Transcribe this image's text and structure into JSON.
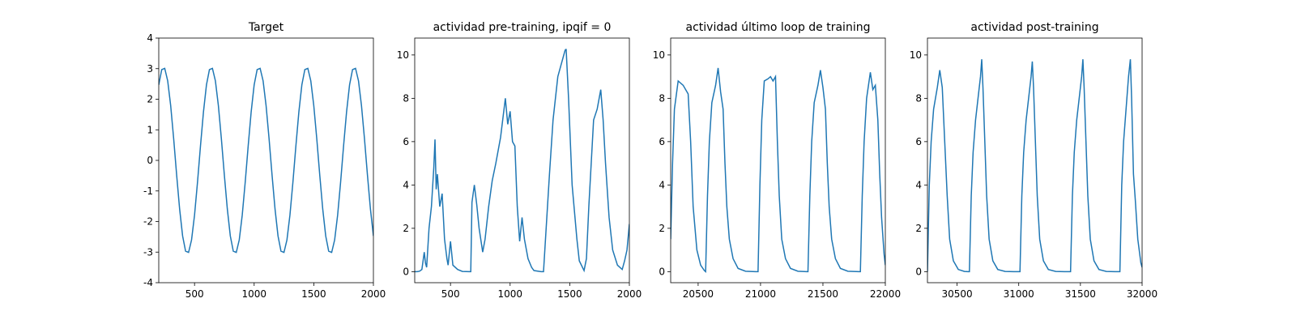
{
  "chart_data": [
    {
      "type": "line",
      "title": "Target",
      "color": "#1f77b4",
      "xlim": [
        200,
        2000
      ],
      "ylim": [
        -4,
        4
      ],
      "xticks": [
        500,
        1000,
        1500,
        2000
      ],
      "yticks": [
        -4,
        -3,
        -2,
        -1,
        0,
        1,
        2,
        3,
        4
      ],
      "x": [
        200,
        225,
        250,
        275,
        300,
        325,
        350,
        375,
        400,
        425,
        450,
        475,
        500,
        525,
        550,
        575,
        600,
        625,
        650,
        675,
        700,
        725,
        750,
        775,
        800,
        825,
        850,
        875,
        900,
        925,
        950,
        975,
        1000,
        1025,
        1050,
        1075,
        1100,
        1125,
        1150,
        1175,
        1200,
        1225,
        1250,
        1275,
        1300,
        1325,
        1350,
        1375,
        1400,
        1425,
        1450,
        1475,
        1500,
        1525,
        1550,
        1575,
        1600,
        1625,
        1650,
        1675,
        1700,
        1725,
        1750,
        1775,
        1800,
        1825,
        1850,
        1875,
        1900,
        1925,
        1950,
        1975,
        2000
      ],
      "values": [
        2.47,
        2.97,
        3.01,
        2.6,
        1.79,
        0.71,
        -0.48,
        -1.59,
        -2.47,
        -2.97,
        -3.01,
        -2.6,
        -1.79,
        -0.71,
        0.48,
        1.59,
        2.47,
        2.97,
        3.01,
        2.6,
        1.79,
        0.71,
        -0.48,
        -1.59,
        -2.47,
        -2.97,
        -3.01,
        -2.6,
        -1.79,
        -0.71,
        0.48,
        1.59,
        2.47,
        2.97,
        3.01,
        2.6,
        1.79,
        0.71,
        -0.48,
        -1.59,
        -2.47,
        -2.97,
        -3.01,
        -2.6,
        -1.79,
        -0.71,
        0.48,
        1.59,
        2.47,
        2.97,
        3.01,
        2.6,
        1.79,
        0.71,
        -0.48,
        -1.59,
        -2.47,
        -2.97,
        -3.01,
        -2.6,
        -1.79,
        -0.71,
        0.48,
        1.59,
        2.47,
        2.97,
        3.01,
        2.6,
        1.79,
        0.71,
        -0.48,
        -1.59,
        -2.47
      ]
    },
    {
      "type": "line",
      "title": "actividad pre-training, ipqif = 0",
      "color": "#1f77b4",
      "xlim": [
        200,
        2000
      ],
      "ylim": [
        -0.51,
        10.78
      ],
      "xticks": [
        500,
        1000,
        1500,
        2000
      ],
      "yticks": [
        0,
        2,
        4,
        6,
        8,
        10
      ],
      "x": [
        200,
        220,
        240,
        260,
        280,
        290,
        300,
        320,
        340,
        360,
        370,
        380,
        390,
        410,
        430,
        450,
        470,
        480,
        500,
        520,
        560,
        600,
        660,
        670,
        680,
        700,
        720,
        740,
        770,
        790,
        820,
        850,
        880,
        920,
        960,
        980,
        1000,
        1020,
        1040,
        1060,
        1080,
        1100,
        1120,
        1150,
        1180,
        1200,
        1260,
        1280,
        1300,
        1330,
        1360,
        1400,
        1460,
        1465,
        1470,
        1490,
        1520,
        1560,
        1580,
        1620,
        1640,
        1660,
        1680,
        1700,
        1730,
        1760,
        1780,
        1800,
        1830,
        1860,
        1900,
        1940,
        1960,
        1980,
        2000
      ],
      "values": [
        0,
        0,
        0.02,
        0.1,
        0.9,
        0.4,
        0.2,
        2,
        3,
        4.8,
        6.1,
        3.8,
        4.5,
        3,
        3.6,
        1.5,
        0.6,
        0.3,
        1.4,
        0.3,
        0.1,
        0.01,
        0,
        0,
        3.2,
        4,
        3.1,
        2,
        0.9,
        1.5,
        3,
        4.2,
        5,
        6.2,
        8,
        6.8,
        7.4,
        6,
        5.8,
        3,
        1.4,
        2.5,
        1.5,
        0.6,
        0.2,
        0.05,
        0,
        0,
        1.8,
        4.5,
        7,
        9,
        10.2,
        10.25,
        10.25,
        8,
        4,
        1.5,
        0.5,
        0.05,
        0.6,
        3,
        5,
        7,
        7.5,
        8.4,
        7,
        5,
        2.5,
        1,
        0.3,
        0.1,
        0.5,
        1,
        2.2
      ]
    },
    {
      "type": "line",
      "title": "actividad último loop de training",
      "color": "#1f77b4",
      "xlim": [
        20280,
        22000
      ],
      "ylim": [
        -0.51,
        10.78
      ],
      "xticks": [
        20500,
        21000,
        21500,
        22000
      ],
      "yticks": [
        0,
        2,
        4,
        6,
        8,
        10
      ],
      "x": [
        20280,
        20295,
        20310,
        20340,
        20380,
        20420,
        20440,
        20460,
        20490,
        20520,
        20550,
        20560,
        20575,
        20590,
        20610,
        20640,
        20660,
        20680,
        20700,
        20715,
        20730,
        20750,
        20780,
        20820,
        20880,
        20960,
        20980,
        20995,
        21010,
        21030,
        21060,
        21080,
        21100,
        21120,
        21135,
        21150,
        21170,
        21200,
        21240,
        21300,
        21370,
        21380,
        21395,
        21410,
        21430,
        21460,
        21480,
        21500,
        21520,
        21535,
        21550,
        21570,
        21600,
        21640,
        21700,
        21790,
        21800,
        21815,
        21830,
        21850,
        21880,
        21900,
        21920,
        21940,
        21955,
        21970,
        21990,
        22000
      ],
      "values": [
        1.5,
        5,
        7.5,
        8.8,
        8.6,
        8.2,
        6,
        3,
        1,
        0.3,
        0.05,
        0,
        3.5,
        6,
        7.8,
        8.6,
        9.4,
        8.3,
        7.5,
        5,
        3,
        1.5,
        0.6,
        0.15,
        0.02,
        0,
        0,
        4,
        7,
        8.8,
        8.9,
        9,
        8.8,
        9,
        6,
        3.5,
        1.5,
        0.6,
        0.15,
        0.02,
        0,
        0,
        3.5,
        6,
        7.8,
        8.6,
        9.3,
        8.5,
        7.5,
        5,
        3,
        1.5,
        0.6,
        0.15,
        0.02,
        0,
        0,
        3.5,
        6,
        8,
        9.2,
        8.4,
        8.6,
        7,
        4.5,
        2.5,
        0.8,
        0.3
      ]
    },
    {
      "type": "line",
      "title": "actividad post-training",
      "color": "#1f77b4",
      "xlim": [
        30260,
        32000
      ],
      "ylim": [
        -0.51,
        10.78
      ],
      "xticks": [
        30500,
        31000,
        31500,
        32000
      ],
      "yticks": [
        0,
        2,
        4,
        6,
        8,
        10
      ],
      "x": [
        30260,
        30275,
        30290,
        30310,
        30340,
        30360,
        30380,
        30400,
        30420,
        30440,
        30470,
        30510,
        30560,
        30590,
        30600,
        30615,
        30630,
        30650,
        30670,
        30690,
        30700,
        30710,
        30725,
        30740,
        30760,
        30790,
        30830,
        30890,
        30960,
        31010,
        31025,
        31040,
        31060,
        31080,
        31100,
        31110,
        31120,
        31135,
        31150,
        31170,
        31200,
        31240,
        31300,
        31370,
        31420,
        31435,
        31450,
        31470,
        31490,
        31510,
        31520,
        31530,
        31545,
        31560,
        31580,
        31610,
        31650,
        31710,
        31780,
        31820,
        31835,
        31850,
        31870,
        31890,
        31905,
        31915,
        31930,
        31945,
        31965,
        31990,
        32000
      ],
      "values": [
        0,
        4,
        6,
        7.5,
        8.5,
        9.3,
        8.5,
        6,
        3.5,
        1.5,
        0.5,
        0.1,
        0.01,
        0,
        0,
        3.5,
        5.5,
        7,
        8,
        9,
        9.8,
        8.5,
        6,
        3.5,
        1.5,
        0.5,
        0.1,
        0.01,
        0,
        0,
        3.5,
        5.5,
        7,
        8,
        9,
        9.7,
        8.5,
        6,
        3.5,
        1.5,
        0.5,
        0.1,
        0.01,
        0,
        0,
        3.5,
        5.5,
        7,
        8,
        9,
        9.8,
        8.5,
        6,
        3.5,
        1.5,
        0.5,
        0.1,
        0.01,
        0,
        0,
        4,
        6,
        7.5,
        9,
        9.8,
        8,
        4.5,
        3.3,
        1.5,
        0.4,
        0.2
      ]
    }
  ]
}
